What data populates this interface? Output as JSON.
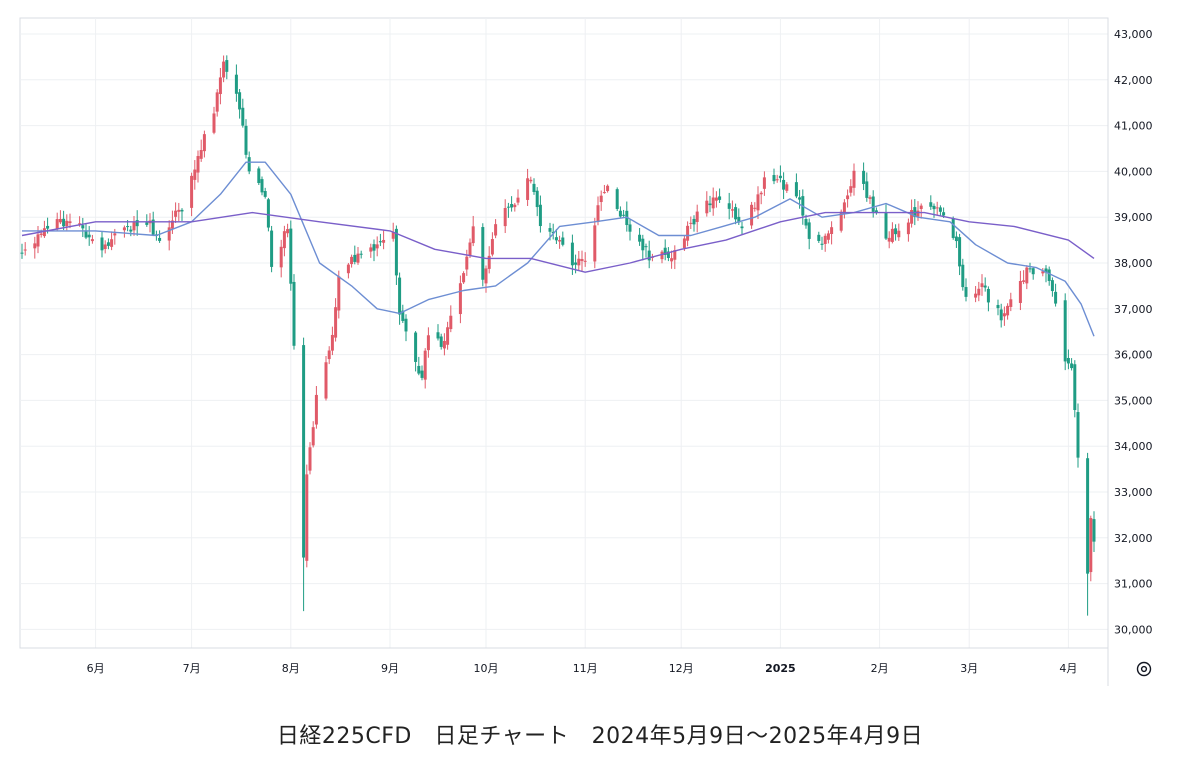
{
  "caption": "日経225CFD　日足チャート　2024年5月9日～2025年4月9日",
  "settings_icon": "gear-icon",
  "colors": {
    "up": "#e05a68",
    "down": "#1f9c84",
    "ma_short": "#6d8ed3",
    "ma_long": "#7a5fc9",
    "grid": "#eef0f3",
    "axis_line": "#d9dce3"
  },
  "chart_data": {
    "type": "candlestick",
    "title": "",
    "y_axis": {
      "position": "right",
      "ylim": [
        29500,
        43000
      ],
      "ticks": [
        30000,
        31000,
        32000,
        33000,
        34000,
        35000,
        36000,
        37000,
        38000,
        39000,
        40000,
        41000,
        42000,
        43000
      ],
      "tick_labels": [
        "30,000",
        "31,000",
        "32,000",
        "33,000",
        "34,000",
        "35,000",
        "36,000",
        "37,000",
        "38,000",
        "39,000",
        "40,000",
        "41,000",
        "42,000",
        "43,000"
      ]
    },
    "x_axis": {
      "start": "2024-05-09",
      "end": "2025-04-09",
      "ticks": [
        {
          "date": "2024-06-01",
          "label": "6月",
          "bold": false
        },
        {
          "date": "2024-07-01",
          "label": "7月",
          "bold": false
        },
        {
          "date": "2024-08-01",
          "label": "8月",
          "bold": false
        },
        {
          "date": "2024-09-01",
          "label": "9月",
          "bold": false
        },
        {
          "date": "2024-10-01",
          "label": "10月",
          "bold": false
        },
        {
          "date": "2024-11-01",
          "label": "11月",
          "bold": false
        },
        {
          "date": "2024-12-01",
          "label": "12月",
          "bold": false
        },
        {
          "date": "2025-01-01",
          "label": "2025",
          "bold": true
        },
        {
          "date": "2025-02-01",
          "label": "2月",
          "bold": false
        },
        {
          "date": "2025-03-01",
          "label": "3月",
          "bold": false
        },
        {
          "date": "2025-04-01",
          "label": "4月",
          "bold": false
        }
      ]
    },
    "grid": true,
    "close_path": [
      [
        "2024-05-09",
        38200
      ],
      [
        "2024-05-15",
        38600
      ],
      [
        "2024-05-21",
        38900
      ],
      [
        "2024-05-27",
        38800
      ],
      [
        "2024-06-03",
        38300
      ],
      [
        "2024-06-10",
        38700
      ],
      [
        "2024-06-17",
        38900
      ],
      [
        "2024-06-21",
        38600
      ],
      [
        "2024-06-28",
        39200
      ],
      [
        "2024-07-04",
        40500
      ],
      [
        "2024-07-09",
        41600
      ],
      [
        "2024-07-11",
        42300
      ],
      [
        "2024-07-16",
        41400
      ],
      [
        "2024-07-19",
        40000
      ],
      [
        "2024-07-24",
        39400
      ],
      [
        "2024-07-26",
        38000
      ],
      [
        "2024-07-31",
        38800
      ],
      [
        "2024-08-02",
        36200
      ],
      [
        "2024-08-05",
        31500
      ],
      [
        "2024-08-06",
        33500
      ],
      [
        "2024-08-09",
        35000
      ],
      [
        "2024-08-14",
        36300
      ],
      [
        "2024-08-16",
        37700
      ],
      [
        "2024-08-22",
        38200
      ],
      [
        "2024-08-27",
        38300
      ],
      [
        "2024-09-02",
        38700
      ],
      [
        "2024-09-04",
        37000
      ],
      [
        "2024-09-06",
        36500
      ],
      [
        "2024-09-11",
        35500
      ],
      [
        "2024-09-13",
        36500
      ],
      [
        "2024-09-18",
        36200
      ],
      [
        "2024-09-24",
        37900
      ],
      [
        "2024-09-27",
        38800
      ],
      [
        "2024-09-30",
        37700
      ],
      [
        "2024-10-02",
        38100
      ],
      [
        "2024-10-04",
        38800
      ],
      [
        "2024-10-11",
        39500
      ],
      [
        "2024-10-15",
        39900
      ],
      [
        "2024-10-18",
        38900
      ],
      [
        "2024-10-23",
        38600
      ],
      [
        "2024-10-28",
        38000
      ],
      [
        "2024-11-01",
        38000
      ],
      [
        "2024-11-06",
        39500
      ],
      [
        "2024-11-08",
        39700
      ],
      [
        "2024-11-15",
        38700
      ],
      [
        "2024-11-22",
        38100
      ],
      [
        "2024-11-29",
        38200
      ],
      [
        "2024-12-06",
        39100
      ],
      [
        "2024-12-11",
        39400
      ],
      [
        "2024-12-16",
        39200
      ],
      [
        "2024-12-20",
        38700
      ],
      [
        "2024-12-27",
        39800
      ],
      [
        "2024-12-30",
        39900
      ],
      [
        "2025-01-07",
        39300
      ],
      [
        "2025-01-10",
        38500
      ],
      [
        "2025-01-14",
        38500
      ],
      [
        "2025-01-17",
        38700
      ],
      [
        "2025-01-22",
        39500
      ],
      [
        "2025-01-24",
        40100
      ],
      [
        "2025-01-29",
        39400
      ],
      [
        "2025-02-03",
        38500
      ],
      [
        "2025-02-07",
        38800
      ],
      [
        "2025-02-13",
        39200
      ],
      [
        "2025-02-19",
        39300
      ],
      [
        "2025-02-25",
        38400
      ],
      [
        "2025-02-28",
        37200
      ],
      [
        "2025-03-05",
        37500
      ],
      [
        "2025-03-11",
        36800
      ],
      [
        "2025-03-14",
        37100
      ],
      [
        "2025-03-19",
        37800
      ],
      [
        "2025-03-25",
        37800
      ],
      [
        "2025-03-28",
        37200
      ],
      [
        "2025-03-31",
        35800
      ],
      [
        "2025-04-02",
        35700
      ],
      [
        "2025-04-04",
        33800
      ],
      [
        "2025-04-07",
        31200
      ],
      [
        "2025-04-08",
        32500
      ],
      [
        "2025-04-09",
        31800
      ]
    ],
    "extreme_wicks": [
      {
        "date": "2024-08-05",
        "low": 30400,
        "high": 33700
      },
      {
        "date": "2025-04-07",
        "low": 30300,
        "high": 32500
      }
    ],
    "ma_short": [
      [
        "2024-05-09",
        38700
      ],
      [
        "2024-06-01",
        38700
      ],
      [
        "2024-06-20",
        38600
      ],
      [
        "2024-07-01",
        38900
      ],
      [
        "2024-07-10",
        39500
      ],
      [
        "2024-07-18",
        40200
      ],
      [
        "2024-07-24",
        40200
      ],
      [
        "2024-08-01",
        39500
      ],
      [
        "2024-08-10",
        38000
      ],
      [
        "2024-08-20",
        37500
      ],
      [
        "2024-08-28",
        37000
      ],
      [
        "2024-09-04",
        36900
      ],
      [
        "2024-09-13",
        37200
      ],
      [
        "2024-09-24",
        37400
      ],
      [
        "2024-10-04",
        37500
      ],
      [
        "2024-10-14",
        38000
      ],
      [
        "2024-10-24",
        38800
      ],
      [
        "2024-11-04",
        38900
      ],
      [
        "2024-11-14",
        39000
      ],
      [
        "2024-11-24",
        38600
      ],
      [
        "2024-12-04",
        38600
      ],
      [
        "2024-12-14",
        38800
      ],
      [
        "2024-12-24",
        39000
      ],
      [
        "2025-01-04",
        39400
      ],
      [
        "2025-01-14",
        39000
      ],
      [
        "2025-01-24",
        39100
      ],
      [
        "2025-02-03",
        39300
      ],
      [
        "2025-02-13",
        39000
      ],
      [
        "2025-02-23",
        38900
      ],
      [
        "2025-03-03",
        38400
      ],
      [
        "2025-03-13",
        38000
      ],
      [
        "2025-03-22",
        37900
      ],
      [
        "2025-03-31",
        37600
      ],
      [
        "2025-04-05",
        37100
      ],
      [
        "2025-04-09",
        36400
      ]
    ],
    "ma_long": [
      [
        "2024-05-09",
        38600
      ],
      [
        "2024-06-01",
        38900
      ],
      [
        "2024-07-01",
        38900
      ],
      [
        "2024-07-20",
        39100
      ],
      [
        "2024-08-10",
        38900
      ],
      [
        "2024-09-01",
        38700
      ],
      [
        "2024-09-15",
        38300
      ],
      [
        "2024-10-01",
        38100
      ],
      [
        "2024-10-15",
        38100
      ],
      [
        "2024-11-01",
        37800
      ],
      [
        "2024-11-15",
        38000
      ],
      [
        "2024-12-01",
        38300
      ],
      [
        "2024-12-15",
        38500
      ],
      [
        "2025-01-01",
        38900
      ],
      [
        "2025-01-15",
        39100
      ],
      [
        "2025-02-01",
        39100
      ],
      [
        "2025-02-15",
        39100
      ],
      [
        "2025-03-01",
        38900
      ],
      [
        "2025-03-15",
        38800
      ],
      [
        "2025-04-01",
        38500
      ],
      [
        "2025-04-09",
        38100
      ]
    ]
  }
}
